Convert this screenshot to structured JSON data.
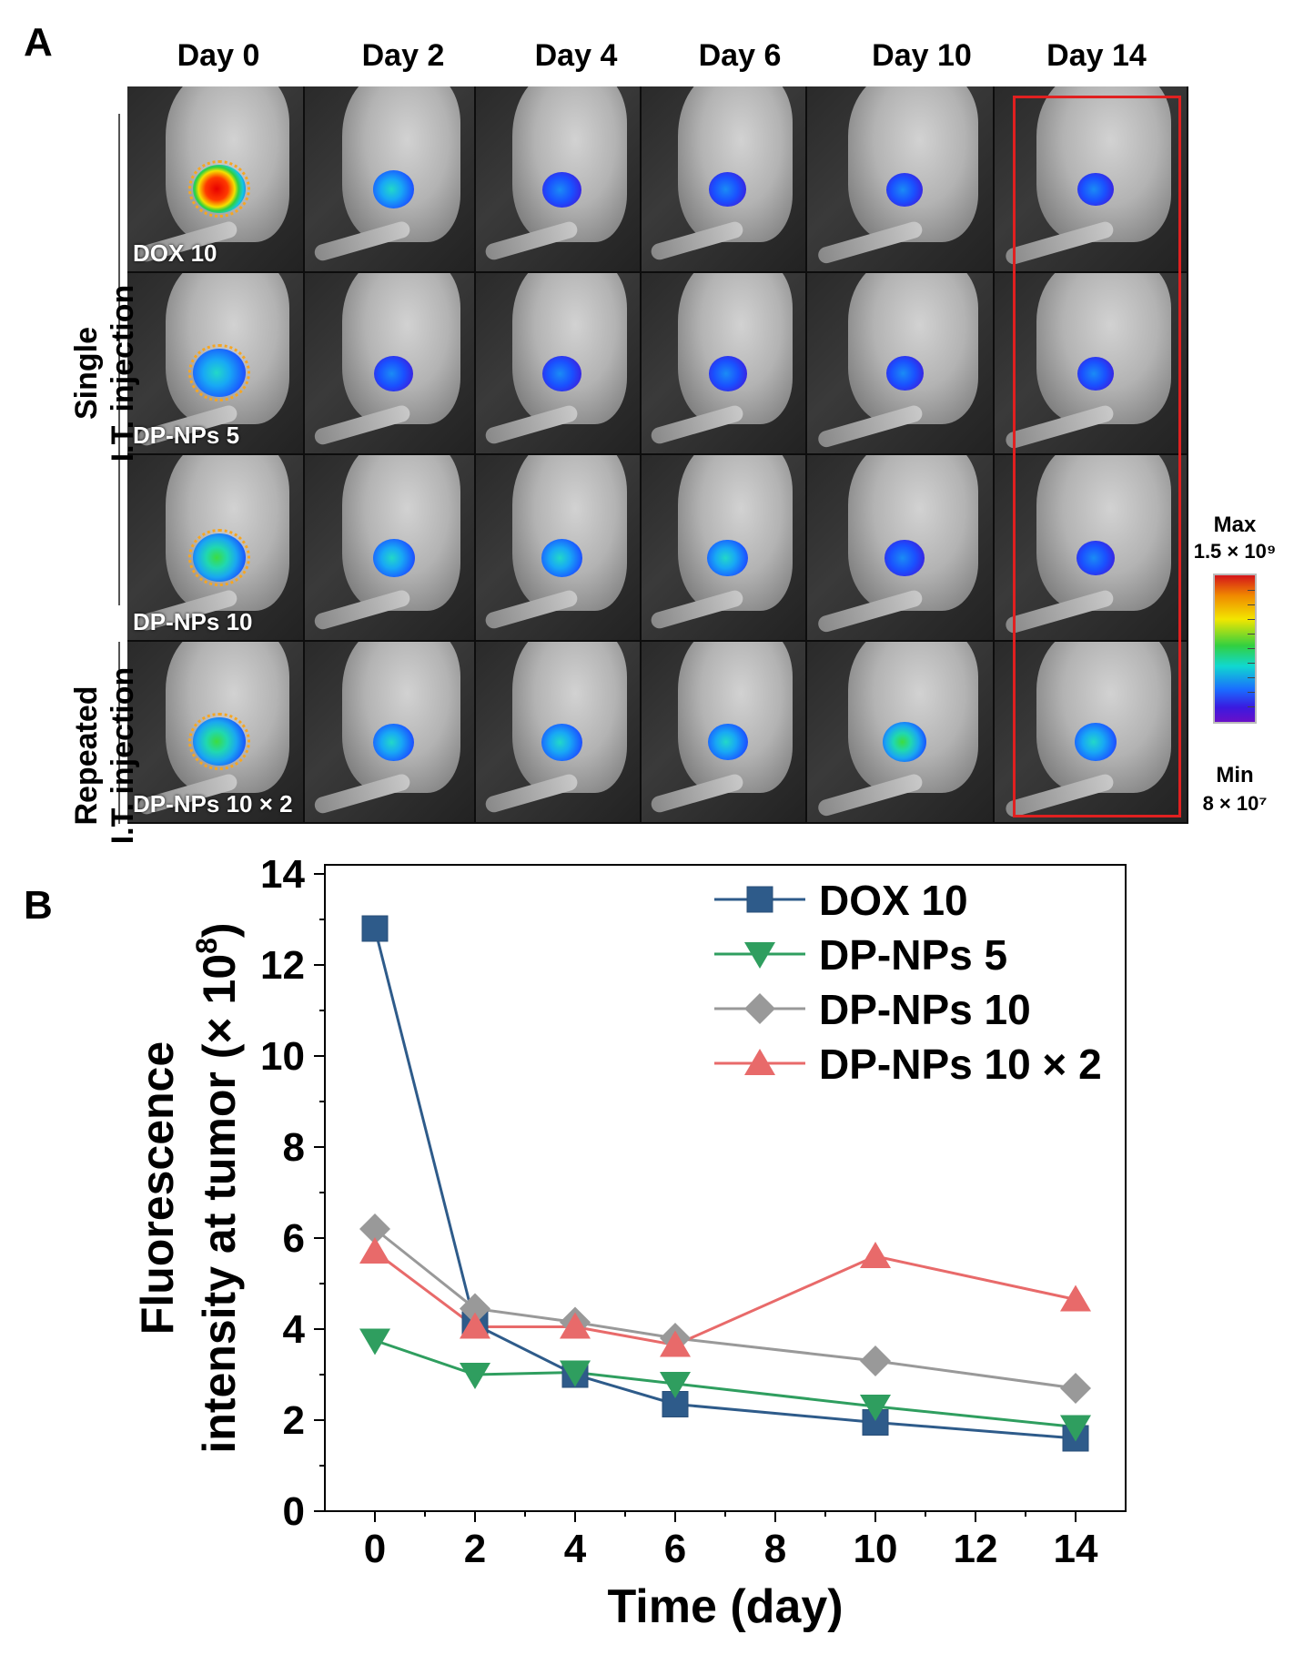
{
  "panel_a": {
    "letter": "A",
    "days": [
      "Day 0",
      "Day 2",
      "Day 4",
      "Day 6",
      "Day 10",
      "Day 14"
    ],
    "groups": [
      {
        "label": "DOX 10",
        "intensity": [
          12.8,
          4.1,
          3.0,
          2.35,
          1.95,
          1.6
        ]
      },
      {
        "label": "DP-NPs 5",
        "intensity": [
          3.75,
          3.0,
          3.05,
          2.8,
          2.3,
          1.85
        ]
      },
      {
        "label": "DP-NPs 10",
        "intensity": [
          6.2,
          4.45,
          4.15,
          3.8,
          3.3,
          2.7
        ]
      },
      {
        "label": "DP-NPs 10 × 2",
        "intensity": [
          5.7,
          4.05,
          4.05,
          3.65,
          5.6,
          4.65
        ]
      }
    ],
    "row_labels": {
      "single": [
        "Single",
        "I.T. injection"
      ],
      "repeated": [
        "Repeated",
        "I.T. injection"
      ]
    },
    "colorbar": {
      "max_label": "Max",
      "max_value": "1.5 × 10⁹",
      "min_label": "Min",
      "min_value": "8 × 10⁷"
    },
    "colors": {
      "highlight": "#e02020"
    }
  },
  "chart_data": {
    "type": "line",
    "panel_letter": "B",
    "x": [
      0,
      2,
      4,
      6,
      10,
      14
    ],
    "series": [
      {
        "name": "DOX 10",
        "values": [
          12.8,
          4.1,
          3.0,
          2.35,
          1.95,
          1.6
        ],
        "color": "#2e5b8a",
        "marker": "square"
      },
      {
        "name": "DP-NPs 5",
        "values": [
          3.75,
          3.0,
          3.05,
          2.8,
          2.3,
          1.85
        ],
        "color": "#2f9e5f",
        "marker": "triangle-down"
      },
      {
        "name": "DP-NPs 10",
        "values": [
          6.2,
          4.45,
          4.15,
          3.8,
          3.3,
          2.7
        ],
        "color": "#999999",
        "marker": "diamond"
      },
      {
        "name": "DP-NPs 10 × 2",
        "values": [
          5.7,
          4.05,
          4.05,
          3.65,
          5.6,
          4.65
        ],
        "color": "#e86a6a",
        "marker": "triangle-up"
      }
    ],
    "xlabel": "Time (day)",
    "ylabel_line1": "Fluorescence",
    "ylabel_line2": "intensity at tumor (× 10",
    "ylabel_sup": "8",
    "ylabel_end": ")",
    "xlim": [
      -1,
      15
    ],
    "ylim": [
      0,
      14.2
    ],
    "xticks": [
      0,
      2,
      4,
      6,
      8,
      10,
      12,
      14
    ],
    "yticks": [
      0,
      2,
      4,
      6,
      8,
      10,
      12,
      14
    ],
    "legend_position": "top-right"
  }
}
